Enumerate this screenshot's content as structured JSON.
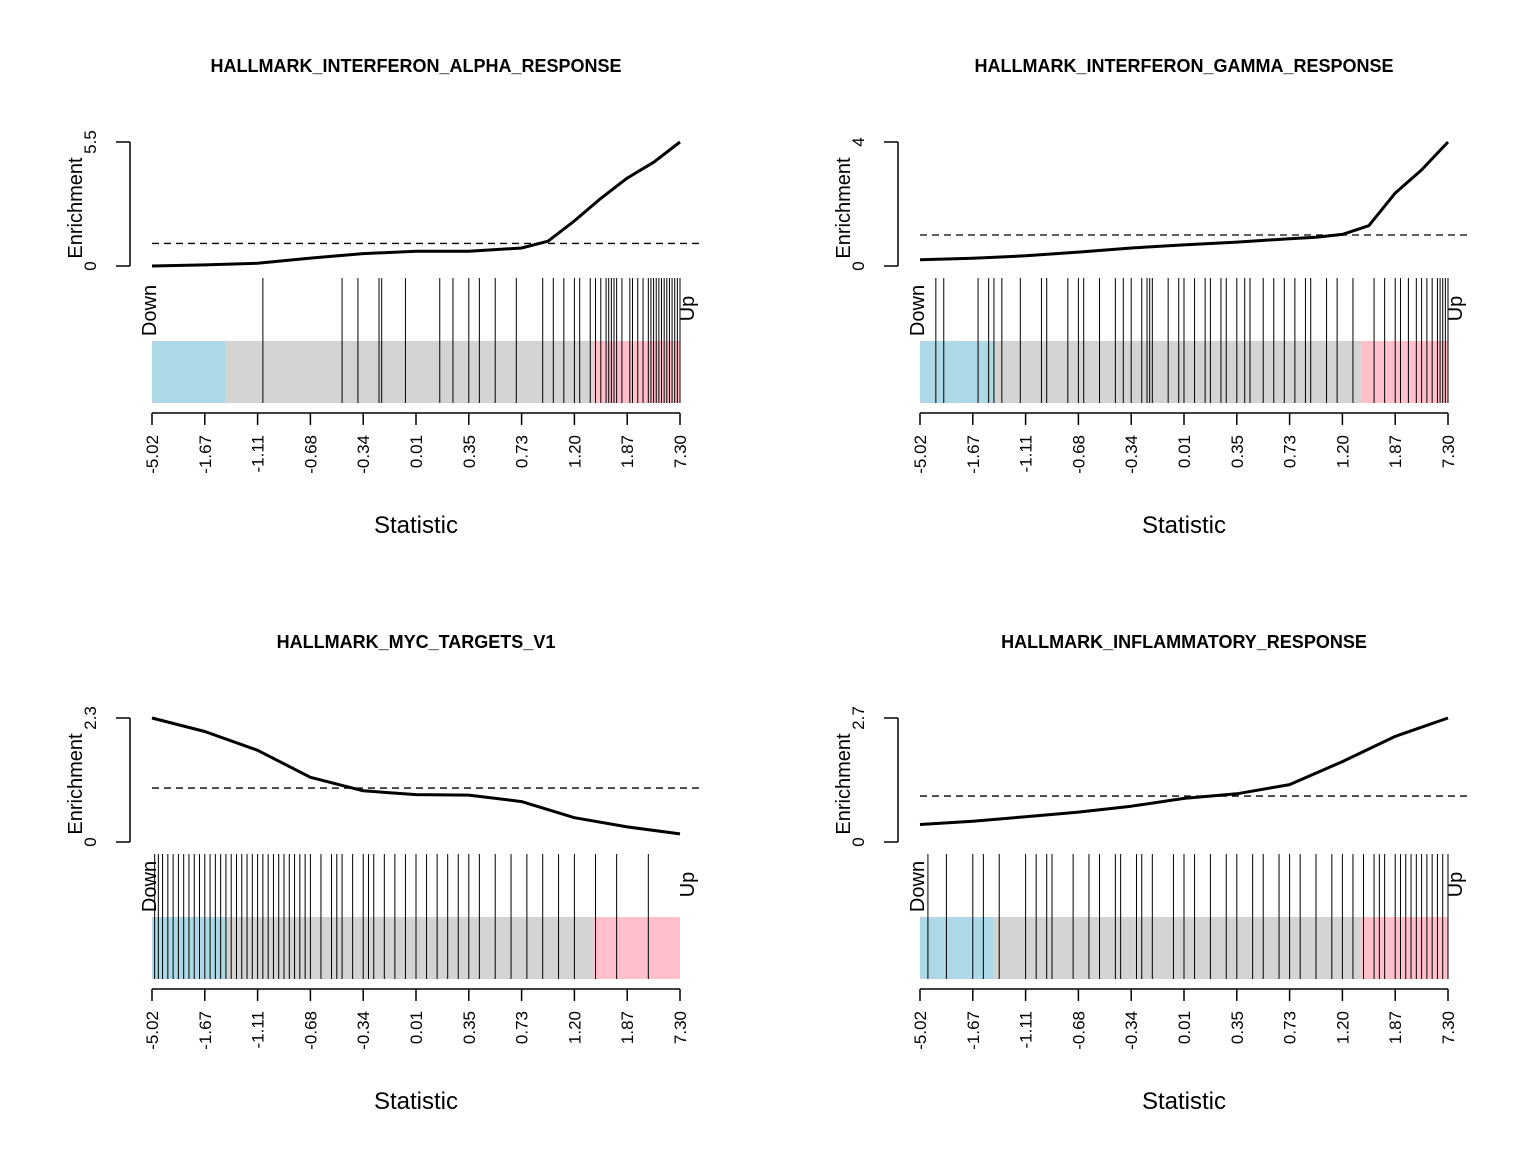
{
  "colors": {
    "down_block": "#add8e6",
    "middle_block": "#d3d3d3",
    "up_block": "#ffc0cb",
    "line": "#000000"
  },
  "chart_data": [
    {
      "type": "barcode_enrichment",
      "title": "HALLMARK_INTERFERON_ALPHA_RESPONSE",
      "xlabel": "Statistic",
      "ylabel": "Enrichment",
      "y_ticks": [
        "0",
        "5.5"
      ],
      "ylim": [
        0,
        5.5
      ],
      "reference_line": 1,
      "x_tick_labels": [
        "-5.02",
        "-1.67",
        "-1.11",
        "-0.68",
        "-0.34",
        "0.01",
        "0.35",
        "0.73",
        "1.20",
        "1.87",
        "7.30"
      ],
      "down_label": "Down",
      "up_label": "Up",
      "enrichment_curve": {
        "x": [
          0,
          0.1,
          0.2,
          0.3,
          0.4,
          0.5,
          0.6,
          0.7,
          0.75,
          0.8,
          0.85,
          0.9,
          0.95,
          1.0
        ],
        "y": [
          0,
          0.05,
          0.12,
          0.35,
          0.55,
          0.65,
          0.65,
          0.8,
          1.1,
          2.0,
          3.0,
          3.9,
          4.6,
          5.5
        ]
      },
      "gene_ranks": [
        0.21,
        0.36,
        0.39,
        0.43,
        0.435,
        0.48,
        0.545,
        0.57,
        0.6,
        0.62,
        0.65,
        0.69,
        0.74,
        0.76,
        0.78,
        0.8,
        0.81,
        0.83,
        0.84,
        0.85,
        0.86,
        0.865,
        0.87,
        0.875,
        0.88,
        0.89,
        0.905,
        0.91,
        0.92,
        0.93,
        0.94,
        0.945,
        0.95,
        0.955,
        0.96,
        0.965,
        0.97,
        0.975,
        0.98,
        0.985,
        0.99,
        0.995,
        1.0
      ]
    },
    {
      "type": "barcode_enrichment",
      "title": "HALLMARK_INTERFERON_GAMMA_RESPONSE",
      "xlabel": "Statistic",
      "ylabel": "Enrichment",
      "y_ticks": [
        "0",
        "4"
      ],
      "ylim": [
        0,
        4
      ],
      "reference_line": 1,
      "x_tick_labels": [
        "-5.02",
        "-1.67",
        "-1.11",
        "-0.68",
        "-0.34",
        "0.01",
        "0.35",
        "0.73",
        "1.20",
        "1.87",
        "7.30"
      ],
      "down_label": "Down",
      "up_label": "Up",
      "enrichment_curve": {
        "x": [
          0,
          0.1,
          0.2,
          0.3,
          0.4,
          0.5,
          0.6,
          0.7,
          0.75,
          0.8,
          0.85,
          0.9,
          0.95,
          1.0
        ],
        "y": [
          0.2,
          0.25,
          0.33,
          0.45,
          0.58,
          0.68,
          0.77,
          0.88,
          0.93,
          1.02,
          1.3,
          2.35,
          3.1,
          4.0
        ]
      },
      "gene_ranks": [
        0.03,
        0.045,
        0.11,
        0.13,
        0.14,
        0.155,
        0.19,
        0.23,
        0.24,
        0.28,
        0.3,
        0.31,
        0.34,
        0.37,
        0.385,
        0.4,
        0.42,
        0.43,
        0.435,
        0.44,
        0.47,
        0.49,
        0.5,
        0.52,
        0.54,
        0.55,
        0.57,
        0.58,
        0.6,
        0.615,
        0.625,
        0.65,
        0.67,
        0.69,
        0.71,
        0.73,
        0.74,
        0.77,
        0.79,
        0.82,
        0.86,
        0.88,
        0.9,
        0.91,
        0.925,
        0.94,
        0.95,
        0.96,
        0.97,
        0.98,
        0.985,
        0.99,
        0.995,
        1.0
      ]
    },
    {
      "type": "barcode_enrichment",
      "title": "HALLMARK_MYC_TARGETS_V1",
      "xlabel": "Statistic",
      "ylabel": "Enrichment",
      "y_ticks": [
        "0",
        "2.3"
      ],
      "ylim": [
        0,
        2.3
      ],
      "reference_line": 1,
      "x_tick_labels": [
        "-5.02",
        "-1.67",
        "-1.11",
        "-0.68",
        "-0.34",
        "0.01",
        "0.35",
        "0.73",
        "1.20",
        "1.87",
        "7.30"
      ],
      "down_label": "Down",
      "up_label": "Up",
      "enrichment_curve": {
        "x": [
          0,
          0.1,
          0.2,
          0.3,
          0.4,
          0.5,
          0.6,
          0.7,
          0.8,
          0.9,
          1.0
        ],
        "y": [
          2.3,
          2.05,
          1.7,
          1.2,
          0.95,
          0.88,
          0.87,
          0.75,
          0.45,
          0.28,
          0.15
        ]
      },
      "gene_ranks": [
        0.005,
        0.012,
        0.02,
        0.03,
        0.04,
        0.05,
        0.06,
        0.07,
        0.08,
        0.09,
        0.1,
        0.11,
        0.12,
        0.13,
        0.14,
        0.15,
        0.16,
        0.17,
        0.18,
        0.19,
        0.2,
        0.21,
        0.22,
        0.23,
        0.24,
        0.25,
        0.26,
        0.27,
        0.28,
        0.29,
        0.3,
        0.32,
        0.34,
        0.35,
        0.36,
        0.38,
        0.4,
        0.41,
        0.42,
        0.44,
        0.46,
        0.48,
        0.5,
        0.52,
        0.54,
        0.56,
        0.58,
        0.6,
        0.62,
        0.65,
        0.68,
        0.71,
        0.74,
        0.77,
        0.8,
        0.84,
        0.88,
        0.94
      ]
    },
    {
      "type": "barcode_enrichment",
      "title": "HALLMARK_INFLAMMATORY_RESPONSE",
      "xlabel": "Statistic",
      "ylabel": "Enrichment",
      "y_ticks": [
        "0",
        "2.7"
      ],
      "ylim": [
        0,
        2.7
      ],
      "reference_line": 1,
      "x_tick_labels": [
        "-5.02",
        "-1.67",
        "-1.11",
        "-0.68",
        "-0.34",
        "0.01",
        "0.35",
        "0.73",
        "1.20",
        "1.87",
        "7.30"
      ],
      "down_label": "Down",
      "up_label": "Up",
      "enrichment_curve": {
        "x": [
          0,
          0.1,
          0.2,
          0.3,
          0.4,
          0.5,
          0.6,
          0.7,
          0.8,
          0.9,
          1.0
        ],
        "y": [
          0.38,
          0.45,
          0.55,
          0.65,
          0.78,
          0.95,
          1.05,
          1.25,
          1.75,
          2.3,
          2.7
        ]
      },
      "gene_ranks": [
        0.015,
        0.05,
        0.1,
        0.12,
        0.15,
        0.2,
        0.22,
        0.24,
        0.25,
        0.29,
        0.32,
        0.34,
        0.37,
        0.38,
        0.41,
        0.42,
        0.44,
        0.48,
        0.5,
        0.52,
        0.55,
        0.58,
        0.6,
        0.63,
        0.65,
        0.68,
        0.7,
        0.72,
        0.75,
        0.78,
        0.8,
        0.82,
        0.84,
        0.86,
        0.87,
        0.88,
        0.9,
        0.91,
        0.92,
        0.93,
        0.94,
        0.95,
        0.96,
        0.97,
        0.98,
        0.99,
        1.0
      ]
    }
  ]
}
